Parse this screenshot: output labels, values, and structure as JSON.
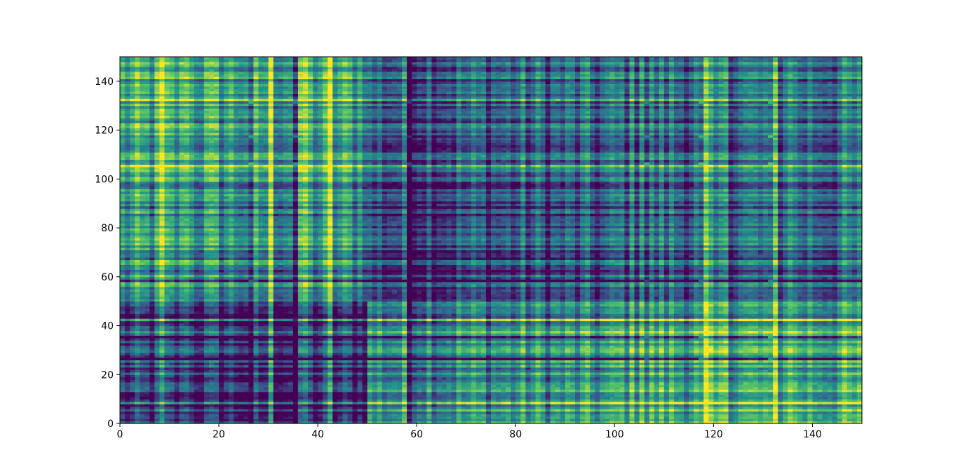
{
  "chart_data": {
    "type": "heatmap",
    "title": "",
    "xlabel": "",
    "ylabel": "",
    "xlim": [
      0,
      150
    ],
    "ylim": [
      0,
      150
    ],
    "n_rows": 150,
    "n_cols": 150,
    "colormap": "viridis",
    "colormap_stops": [
      "#440154",
      "#3b528b",
      "#21918c",
      "#5ec962",
      "#fde725"
    ],
    "x_ticks": [
      0,
      20,
      40,
      60,
      80,
      100,
      120,
      140
    ],
    "y_ticks": [
      0,
      20,
      40,
      60,
      80,
      100,
      120,
      140
    ],
    "grid": false,
    "legend": "none",
    "blocks": {
      "boundaries": [
        0,
        50,
        100,
        150
      ],
      "row_bands": [
        {
          "from": 0,
          "to": 14,
          "label_note": "bright"
        },
        {
          "from": 14,
          "to": 50
        },
        {
          "from": 50,
          "to": 62
        },
        {
          "from": 62,
          "to": 100
        },
        {
          "from": 100,
          "to": 150
        }
      ],
      "mean_intensity": [
        [
          0.15,
          0.45,
          0.55
        ],
        [
          0.45,
          0.2,
          0.3
        ],
        [
          0.55,
          0.3,
          0.35
        ]
      ],
      "bright_columns": [
        8,
        13,
        30,
        37,
        42,
        105,
        106,
        117,
        118,
        122,
        131,
        132,
        135
      ],
      "dark_rows": [
        106,
        131,
        117,
        58,
        35,
        26
      ]
    }
  }
}
